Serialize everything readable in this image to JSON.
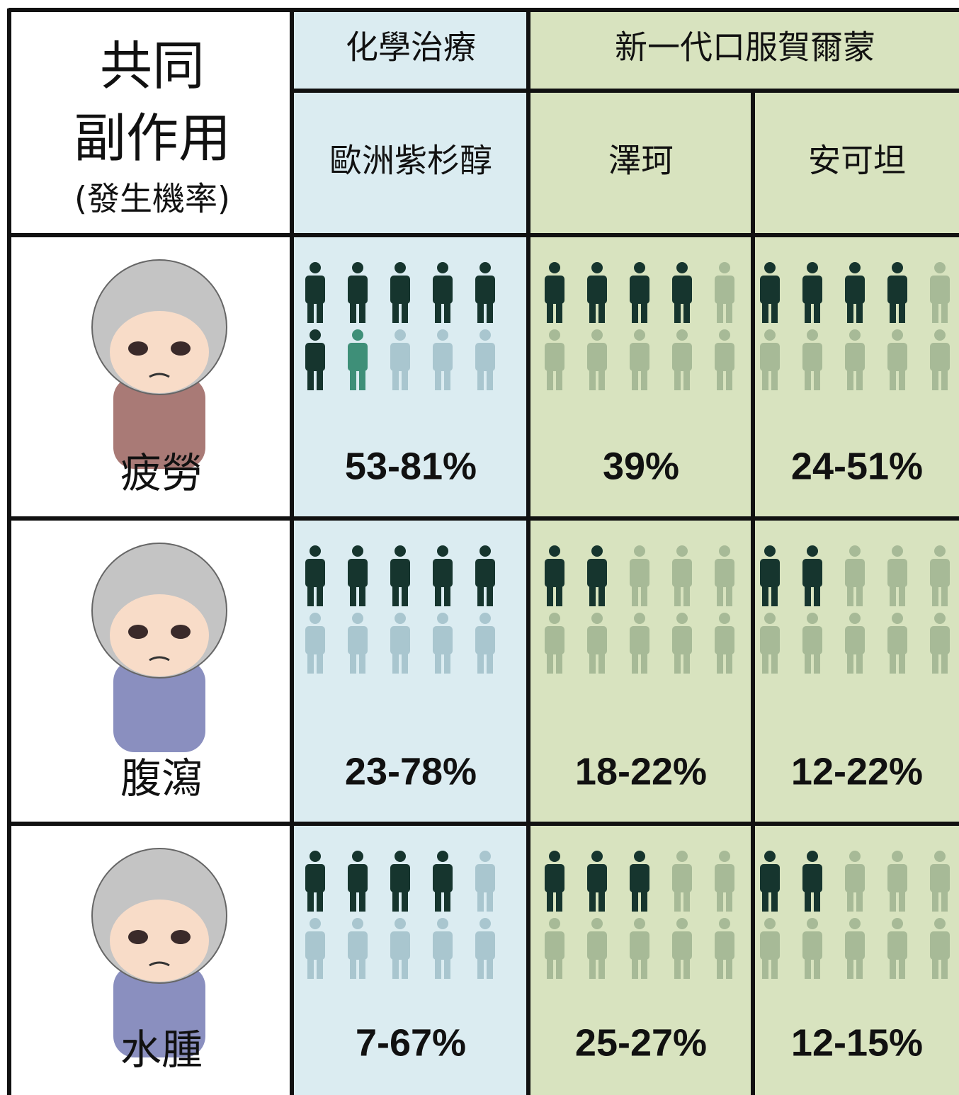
{
  "header": {
    "title_lines": [
      "共同",
      "副作用"
    ],
    "subtitle": "(發生機率)",
    "groups": [
      "化學治療",
      "新一代口服賀爾蒙"
    ],
    "drugs": [
      "歐洲紫杉醇",
      "澤珂",
      "安可坦"
    ]
  },
  "icon_total": 10,
  "rows": [
    {
      "effect": "疲勞",
      "rates": [
        "53-81%",
        "39%",
        "24-51%"
      ],
      "icons": [
        6.5,
        4,
        4
      ]
    },
    {
      "effect": "腹瀉",
      "rates": [
        "23-78%",
        "18-22%",
        "12-22%"
      ],
      "icons": [
        5,
        2,
        2
      ]
    },
    {
      "effect": "水腫",
      "rates": [
        "7-67%",
        "25-27%",
        "12-15%"
      ],
      "icons": [
        4,
        3,
        2
      ]
    }
  ]
}
